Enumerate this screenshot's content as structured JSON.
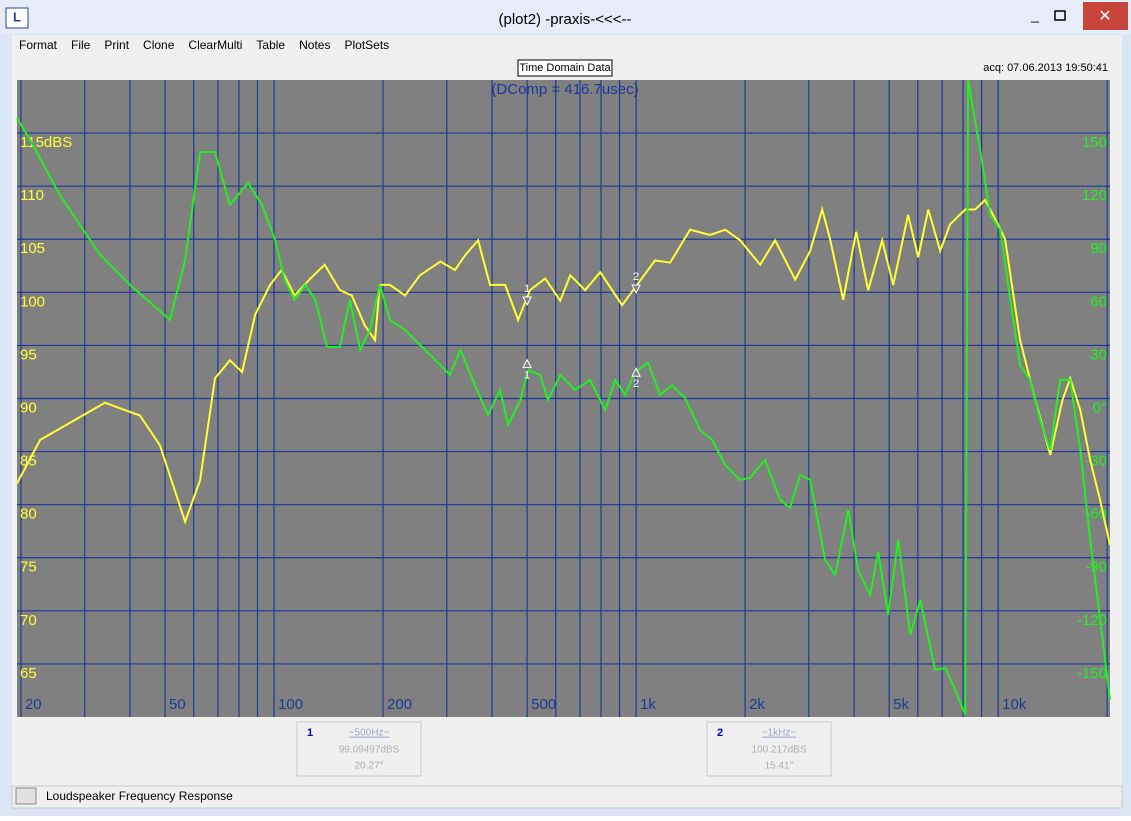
{
  "window": {
    "title": "(plot2) -praxis-<<<--"
  },
  "menu": [
    "Format",
    "File",
    "Print",
    "Clone",
    "ClearMulti",
    "Table",
    "Notes",
    "PlotSets"
  ],
  "header": {
    "button": "Time Domain Data",
    "acq": "acq: 07.06.2013 19:50:41"
  },
  "chart_data": {
    "type": "line",
    "annotation": "(DComp = 416.7usec)",
    "xscale": "log",
    "xlim": [
      19.5,
      20366
    ],
    "xticks": [
      20,
      50,
      100,
      200,
      500,
      {
        "value": 1000,
        "label": "1k"
      },
      {
        "value": 2000,
        "label": "2k"
      },
      {
        "value": 5000,
        "label": "5k"
      },
      {
        "value": 10000,
        "label": "10k"
      }
    ],
    "xgrid": [
      20,
      30,
      40,
      50,
      60,
      70,
      80,
      90,
      100,
      200,
      300,
      400,
      500,
      600,
      700,
      800,
      900,
      1000,
      2000,
      3000,
      4000,
      5000,
      6000,
      7000,
      8000,
      9000,
      10000,
      20000
    ],
    "ylim": [
      60,
      120
    ],
    "yticks": [
      65,
      70,
      75,
      80,
      85,
      90,
      95,
      100,
      105,
      110,
      {
        "value": 115,
        "label": "115dBS"
      }
    ],
    "y2lim": [
      -180,
      180
    ],
    "y2ticks": [
      -150,
      -120,
      -90,
      -60,
      -30,
      {
        "value": 0,
        "label": "0°"
      },
      30,
      60,
      90,
      120,
      150
    ],
    "grid": true,
    "series": [
      {
        "color": "#ffff33",
        "x": [
          19.5,
          22.6,
          34.1,
          42.6,
          48.4,
          56.8,
          62.5,
          68.7,
          75.5,
          81.6,
          88.7,
          97.5,
          105,
          114,
          126,
          138,
          152,
          164,
          178,
          190,
          196,
          209,
          230,
          253,
          288,
          316,
          337,
          366,
          395,
          435,
          472,
          509,
          561,
          617,
          658,
          723,
          796,
          915,
          1026,
          1128,
          1241,
          1410,
          1601,
          1762,
          1937,
          2202,
          2421,
          2750,
          3025,
          3266,
          3435,
          3733,
          4053,
          4375,
          4784,
          5129,
          5641,
          6012,
          6412,
          6918,
          7362,
          8110,
          8637,
          9204,
          9817,
          10451,
          11500,
          12656,
          13930,
          15035,
          15810,
          16866,
          17961,
          19139,
          20366
        ],
        "values": [
          82.0,
          86.1,
          89.6,
          88.4,
          85.6,
          78.4,
          82.3,
          91.9,
          93.6,
          92.5,
          97.9,
          100.7,
          102.1,
          99.7,
          101.3,
          102.6,
          100.2,
          99.7,
          96.9,
          95.5,
          100.7,
          100.7,
          99.7,
          101.6,
          102.9,
          102.1,
          103.5,
          104.9,
          100.7,
          100.7,
          97.4,
          100.2,
          101.3,
          99.2,
          101.6,
          100.2,
          101.9,
          98.8,
          101.1,
          103.0,
          102.8,
          105.9,
          105.4,
          105.9,
          104.9,
          102.6,
          104.9,
          101.2,
          103.9,
          107.8,
          105.0,
          99.3,
          105.7,
          100.2,
          104.9,
          100.7,
          107.3,
          103.3,
          107.8,
          103.9,
          106.4,
          107.8,
          107.8,
          108.7,
          106.9,
          105.0,
          95.5,
          89.9,
          84.7,
          89.8,
          91.9,
          88.9,
          84.2,
          80.4,
          76.2
        ]
      },
      {
        "color": "#22ee22",
        "axis": "y2",
        "x": [
          19.5,
          21.2,
          25.6,
          33.1,
          40.0,
          51.6,
          56.8,
          62.5,
          68.7,
          75.5,
          84.8,
          92.7,
          100.7,
          107,
          114,
          122,
          130,
          140,
          152,
          162,
          173,
          184,
          196,
          209,
          230,
          253,
          279,
          306,
          327,
          359,
          390,
          421,
          443,
          479,
          503,
          543,
          571,
          617,
          678,
          746,
          821,
          875,
          933,
          994,
          1079,
          1165,
          1257,
          1365,
          1503,
          1622,
          1762,
          1937,
          2065,
          2270,
          2500,
          2661,
          2838,
          3025,
          3327,
          3548,
          3855,
          4104,
          4428,
          4662,
          4966,
          5297,
          5715,
          6095,
          6699,
          7145,
          7604,
          8110,
          8260,
          8918,
          9507,
          10136,
          10800,
          11500,
          12250,
          13060,
          13930,
          14830,
          15810,
          16866,
          17961,
          19139,
          20366
        ],
        "values": [
          158.5,
          146.1,
          115.0,
          81.1,
          64.2,
          44.4,
          78.3,
          139.3,
          139.3,
          109.4,
          121.8,
          109.4,
          89.6,
          67.0,
          55.8,
          64.2,
          55.8,
          29.1,
          29.1,
          55.8,
          27.4,
          38.7,
          64.2,
          44.4,
          38.7,
          30.2,
          21.7,
          13.3,
          27.4,
          7.6,
          -9.3,
          4.8,
          -15.0,
          -0.8,
          16.1,
          13.3,
          -0.8,
          13.3,
          4.8,
          10.5,
          -6.5,
          10.5,
          2.0,
          15.0,
          20.1,
          2.0,
          7.6,
          0.3,
          -17.8,
          -23.4,
          -37.6,
          -46.0,
          -44.9,
          -34.7,
          -57.3,
          -61.9,
          -43.2,
          -46.0,
          -91.2,
          -99.7,
          -63.0,
          -96.9,
          -111.0,
          -86.7,
          -122.3,
          -79.9,
          -133.6,
          -113.9,
          -153.4,
          -152.3,
          -164.7,
          -178.8,
          180,
          140.4,
          103.7,
          95.2,
          55.8,
          18.9,
          10.5,
          -12.1,
          -29.1,
          10.5,
          10.5,
          -29.1,
          -79.9,
          -125.2,
          -170.4
        ]
      }
    ],
    "markers": [
      {
        "label": "1",
        "x": 500,
        "values": [
          99.09497,
          20.27
        ]
      },
      {
        "label": "2",
        "x": 1000,
        "values": [
          100.217,
          15.41
        ]
      }
    ]
  },
  "marker_panels": [
    {
      "index": "1",
      "freq": "~500Hz~",
      "mag": "99.09497dBS",
      "phase": "20.27°"
    },
    {
      "index": "2",
      "freq": "~1kHz~",
      "mag": "100.217dBS",
      "phase": "15.41°"
    }
  ],
  "status": "Loudspeaker Frequency Response"
}
